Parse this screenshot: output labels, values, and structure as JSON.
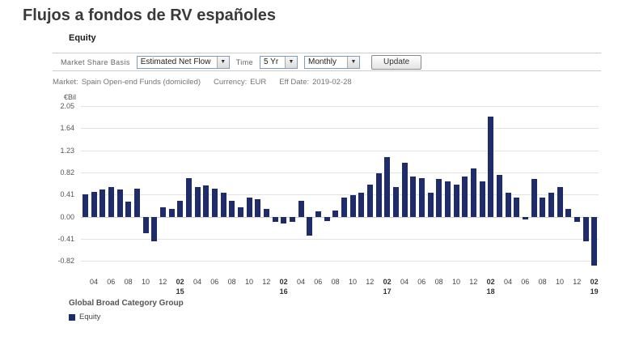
{
  "page": {
    "title": "Flujos a fondos de RV españoles"
  },
  "panel": {
    "heading": "Equity",
    "toolbar": {
      "market_share_basis_label": "Market Share Basis",
      "market_share_basis_value": "Estimated Net Flow",
      "time_label": "Time",
      "time_value": "5 Yr",
      "frequency_value": "Monthly",
      "update_label": "Update",
      "dropdown_arrow": "▼"
    },
    "info": {
      "market_label": "Market:",
      "market_value": "Spain Open-end Funds (domiciled)",
      "currency_label": "Currency:",
      "currency_value": "EUR",
      "eff_date_label": "Eff Date:",
      "eff_date_value": "2019-02-28"
    },
    "legend": {
      "title": "Global Broad Category Group",
      "items": [
        {
          "label": "Equity",
          "color": "#1e2d69"
        }
      ]
    }
  },
  "chart_data": {
    "type": "bar",
    "title": "Equity",
    "unit_label": "€Bil",
    "bar_color": "#1e2d69",
    "grid": true,
    "legend_position": "bottom-left",
    "y_ticks": [
      2.05,
      1.64,
      1.23,
      0.82,
      0.41,
      0.0,
      -0.41,
      -0.82
    ],
    "ylim": [
      -1.025,
      2.05
    ],
    "x": [
      "2014-03",
      "2014-04",
      "2014-05",
      "2014-06",
      "2014-07",
      "2014-08",
      "2014-09",
      "2014-10",
      "2014-11",
      "2014-12",
      "2015-01",
      "2015-02",
      "2015-03",
      "2015-04",
      "2015-05",
      "2015-06",
      "2015-07",
      "2015-08",
      "2015-09",
      "2015-10",
      "2015-11",
      "2015-12",
      "2016-01",
      "2016-02",
      "2016-03",
      "2016-04",
      "2016-05",
      "2016-06",
      "2016-07",
      "2016-08",
      "2016-09",
      "2016-10",
      "2016-11",
      "2016-12",
      "2017-01",
      "2017-02",
      "2017-03",
      "2017-04",
      "2017-05",
      "2017-06",
      "2017-07",
      "2017-08",
      "2017-09",
      "2017-10",
      "2017-11",
      "2017-12",
      "2018-01",
      "2018-02",
      "2018-03",
      "2018-04",
      "2018-05",
      "2018-06",
      "2018-07",
      "2018-08",
      "2018-09",
      "2018-10",
      "2018-11",
      "2018-12",
      "2019-01",
      "2019-02"
    ],
    "series": [
      {
        "name": "Equity",
        "values": [
          0.42,
          0.46,
          0.5,
          0.55,
          0.5,
          0.28,
          0.52,
          -0.3,
          -0.45,
          0.18,
          0.15,
          0.3,
          0.72,
          0.55,
          0.58,
          0.52,
          0.45,
          0.3,
          0.18,
          0.35,
          0.32,
          0.15,
          -0.1,
          -0.12,
          -0.1,
          0.3,
          -0.35,
          0.1,
          -0.08,
          0.12,
          0.35,
          0.4,
          0.45,
          0.6,
          0.8,
          1.1,
          0.55,
          1.0,
          0.75,
          0.72,
          0.45,
          0.7,
          0.65,
          0.6,
          0.75,
          0.9,
          0.65,
          1.85,
          0.78,
          0.45,
          0.35,
          -0.05,
          0.7,
          0.35,
          0.45,
          0.55,
          0.15,
          -0.1,
          -0.45,
          -0.9
        ]
      }
    ]
  }
}
